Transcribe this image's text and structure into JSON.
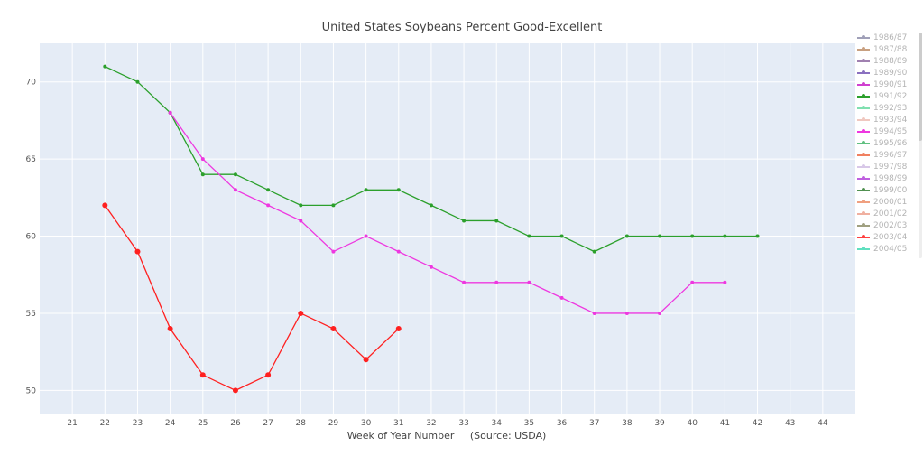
{
  "chart_data": {
    "type": "line",
    "title": "United States Soybeans Percent Good-Excellent",
    "xlabel": "Week of Year Number     (Source: USDA)",
    "ylabel": "",
    "xlim": [
      20,
      45
    ],
    "ylim": [
      48.5,
      72.5
    ],
    "xticks": [
      21,
      22,
      23,
      24,
      25,
      26,
      27,
      28,
      29,
      30,
      31,
      32,
      33,
      34,
      35,
      36,
      37,
      38,
      39,
      40,
      41,
      42,
      43,
      44
    ],
    "yticks": [
      50,
      55,
      60,
      65,
      70
    ],
    "grid": true,
    "legend_position": "right",
    "series": [
      {
        "color": "#2ca02c",
        "marker_size": 2,
        "x": [
          22,
          23,
          24,
          25,
          26,
          27,
          28,
          29,
          30,
          31,
          32,
          33,
          34,
          35,
          36,
          37,
          38,
          39,
          40,
          41,
          42
        ],
        "y": [
          71,
          70,
          68,
          64,
          64,
          63,
          62,
          62,
          63,
          63,
          62,
          61,
          61,
          60,
          60,
          59,
          60,
          60,
          60,
          60,
          60
        ]
      },
      {
        "color": "#ee38e0",
        "marker_size": 2,
        "x": [
          24,
          25,
          26,
          27,
          28,
          29,
          30,
          31,
          32,
          33,
          34,
          35,
          36,
          37,
          38,
          39,
          40,
          41
        ],
        "y": [
          68,
          65,
          63,
          62,
          61,
          59,
          60,
          59,
          58,
          57,
          57,
          57,
          56,
          55,
          55,
          55,
          57,
          57
        ]
      },
      {
        "color": "#ff2020",
        "marker_size": 3,
        "x": [
          22,
          23,
          24,
          25,
          26,
          27,
          28,
          29,
          30,
          31
        ],
        "y": [
          62,
          59,
          54,
          51,
          50,
          51,
          55,
          54,
          52,
          54
        ]
      }
    ]
  },
  "legend": {
    "items": [
      {
        "label": "1986/87",
        "color": "#a0a0b8"
      },
      {
        "label": "1987/88",
        "color": "#c8a080"
      },
      {
        "label": "1988/89",
        "color": "#a080b0"
      },
      {
        "label": "1989/90",
        "color": "#8a70c0"
      },
      {
        "label": "1990/91",
        "color": "#d040d0"
      },
      {
        "label": "1991/92",
        "color": "#2ca02c"
      },
      {
        "label": "1992/93",
        "color": "#80e0b0"
      },
      {
        "label": "1993/94",
        "color": "#f0c8c0"
      },
      {
        "label": "1994/95",
        "color": "#ee38e0"
      },
      {
        "label": "1995/96",
        "color": "#60c080"
      },
      {
        "label": "1996/97",
        "color": "#f08060"
      },
      {
        "label": "1997/98",
        "color": "#d8c8e8"
      },
      {
        "label": "1998/99",
        "color": "#c060e0"
      },
      {
        "label": "1999/00",
        "color": "#509050"
      },
      {
        "label": "2000/01",
        "color": "#f0a080"
      },
      {
        "label": "2001/02",
        "color": "#f0b0a0"
      },
      {
        "label": "2002/03",
        "color": "#a0a080"
      },
      {
        "label": "2003/04",
        "color": "#ff4040"
      },
      {
        "label": "2004/05",
        "color": "#60e0c0"
      }
    ]
  }
}
